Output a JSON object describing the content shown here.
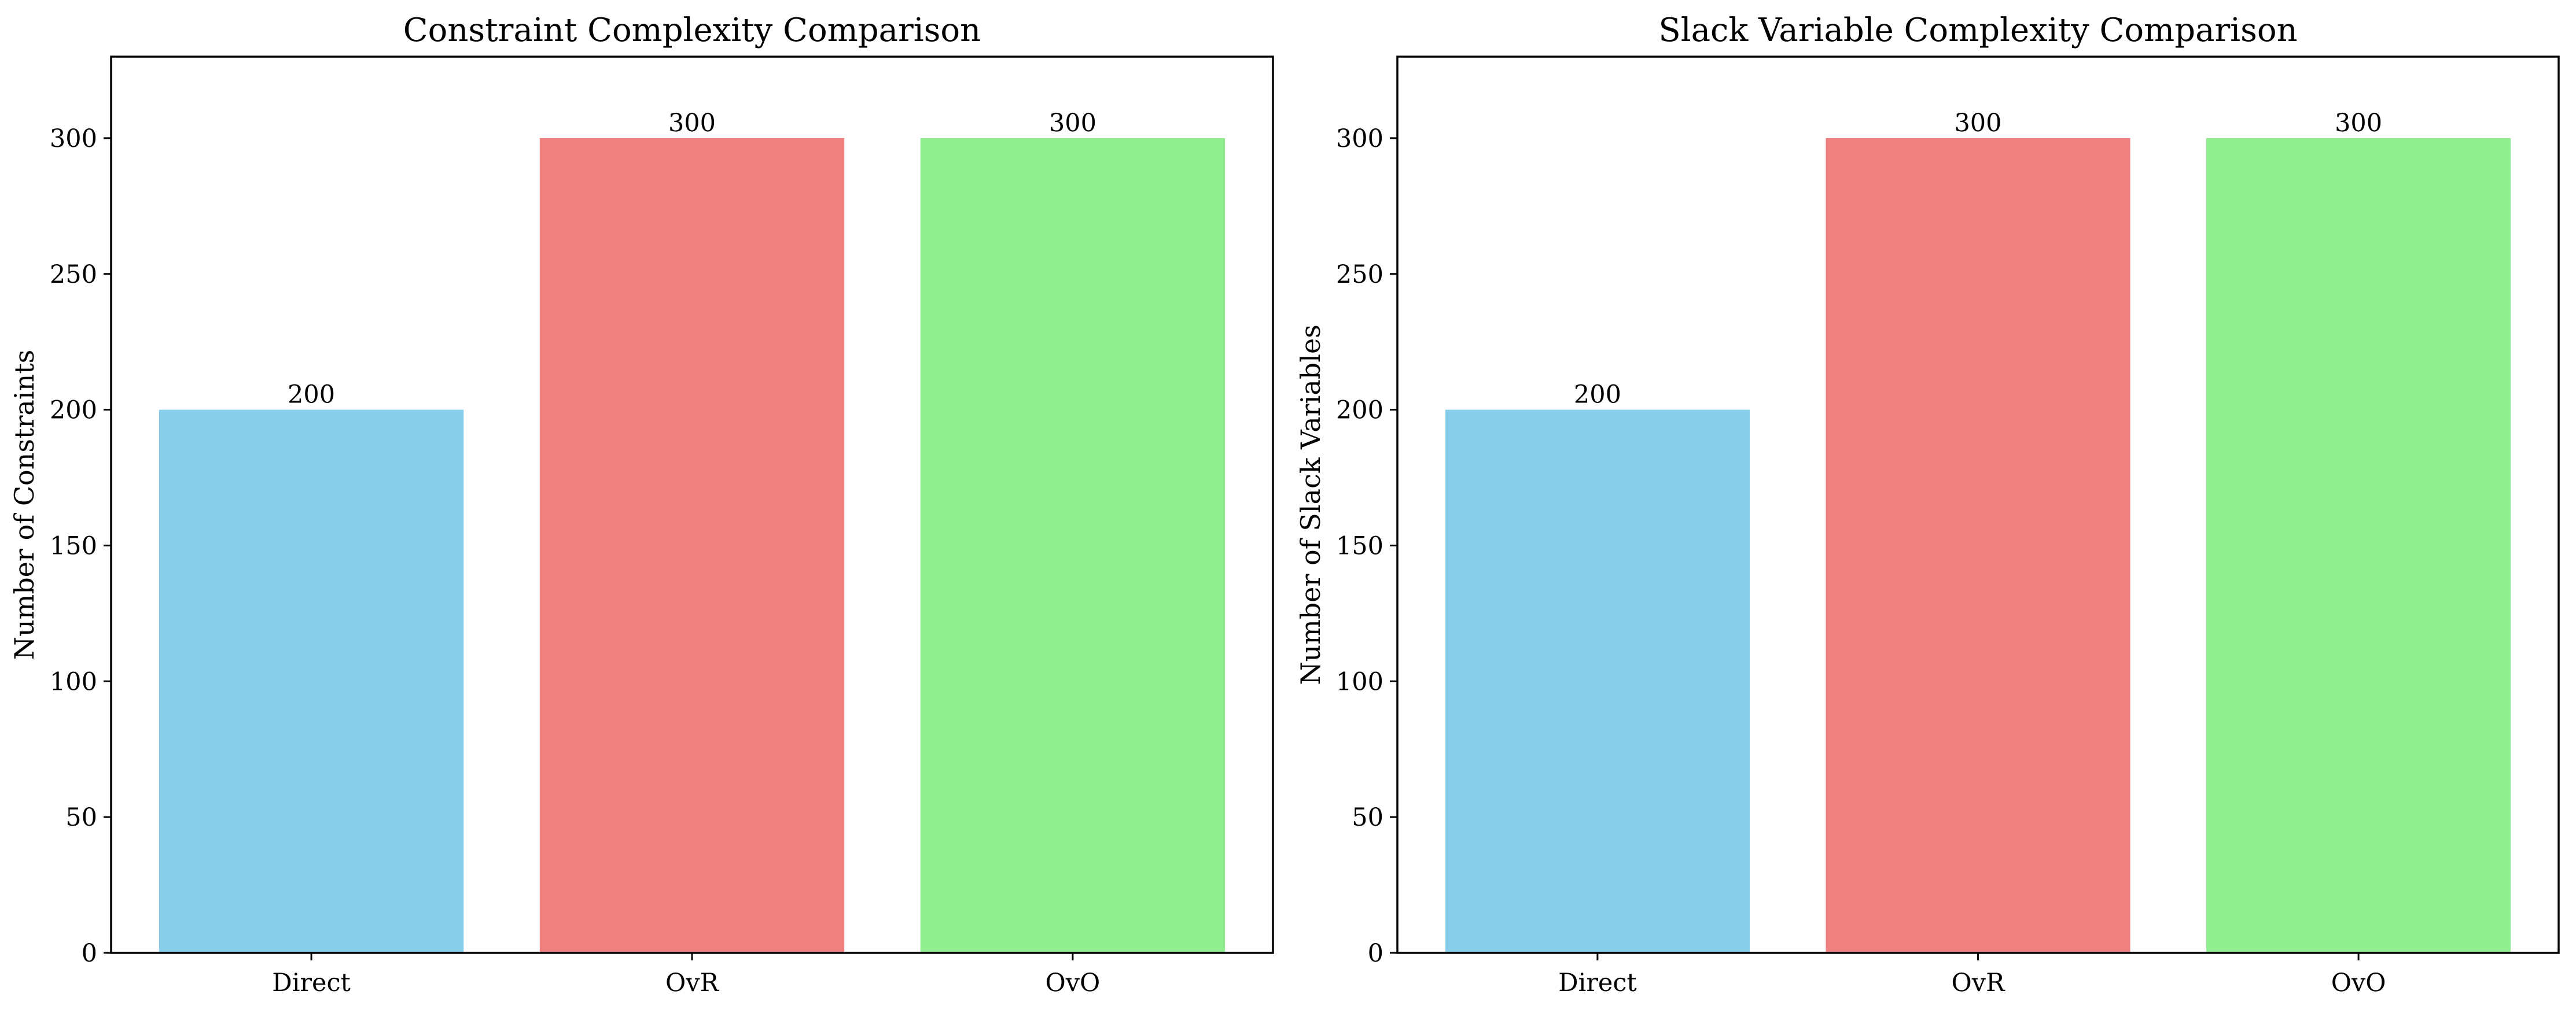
{
  "chart_data": [
    {
      "type": "bar",
      "title": "Constraint Complexity Comparison",
      "xlabel": "",
      "ylabel": "Number of Constraints",
      "categories": [
        "Direct",
        "OvR",
        "OvO"
      ],
      "values": [
        200,
        300,
        300
      ],
      "value_labels": [
        "200",
        "300",
        "300"
      ],
      "colors": [
        "#87ceeb",
        "#f08080",
        "#90ee90"
      ],
      "ylim": [
        0,
        330
      ],
      "yticks": [
        0,
        50,
        100,
        150,
        200,
        250,
        300
      ],
      "ytick_labels": [
        "0",
        "50",
        "100",
        "150",
        "200",
        "250",
        "300"
      ],
      "grid": false,
      "legend": "none"
    },
    {
      "type": "bar",
      "title": "Slack Variable Complexity Comparison",
      "xlabel": "",
      "ylabel": "Number of Slack Variables",
      "categories": [
        "Direct",
        "OvR",
        "OvO"
      ],
      "values": [
        200,
        300,
        300
      ],
      "value_labels": [
        "200",
        "300",
        "300"
      ],
      "colors": [
        "#87ceeb",
        "#f08080",
        "#90ee90"
      ],
      "ylim": [
        0,
        330
      ],
      "yticks": [
        0,
        50,
        100,
        150,
        200,
        250,
        300
      ],
      "ytick_labels": [
        "0",
        "50",
        "100",
        "150",
        "200",
        "250",
        "300"
      ],
      "grid": false,
      "legend": "none"
    }
  ]
}
